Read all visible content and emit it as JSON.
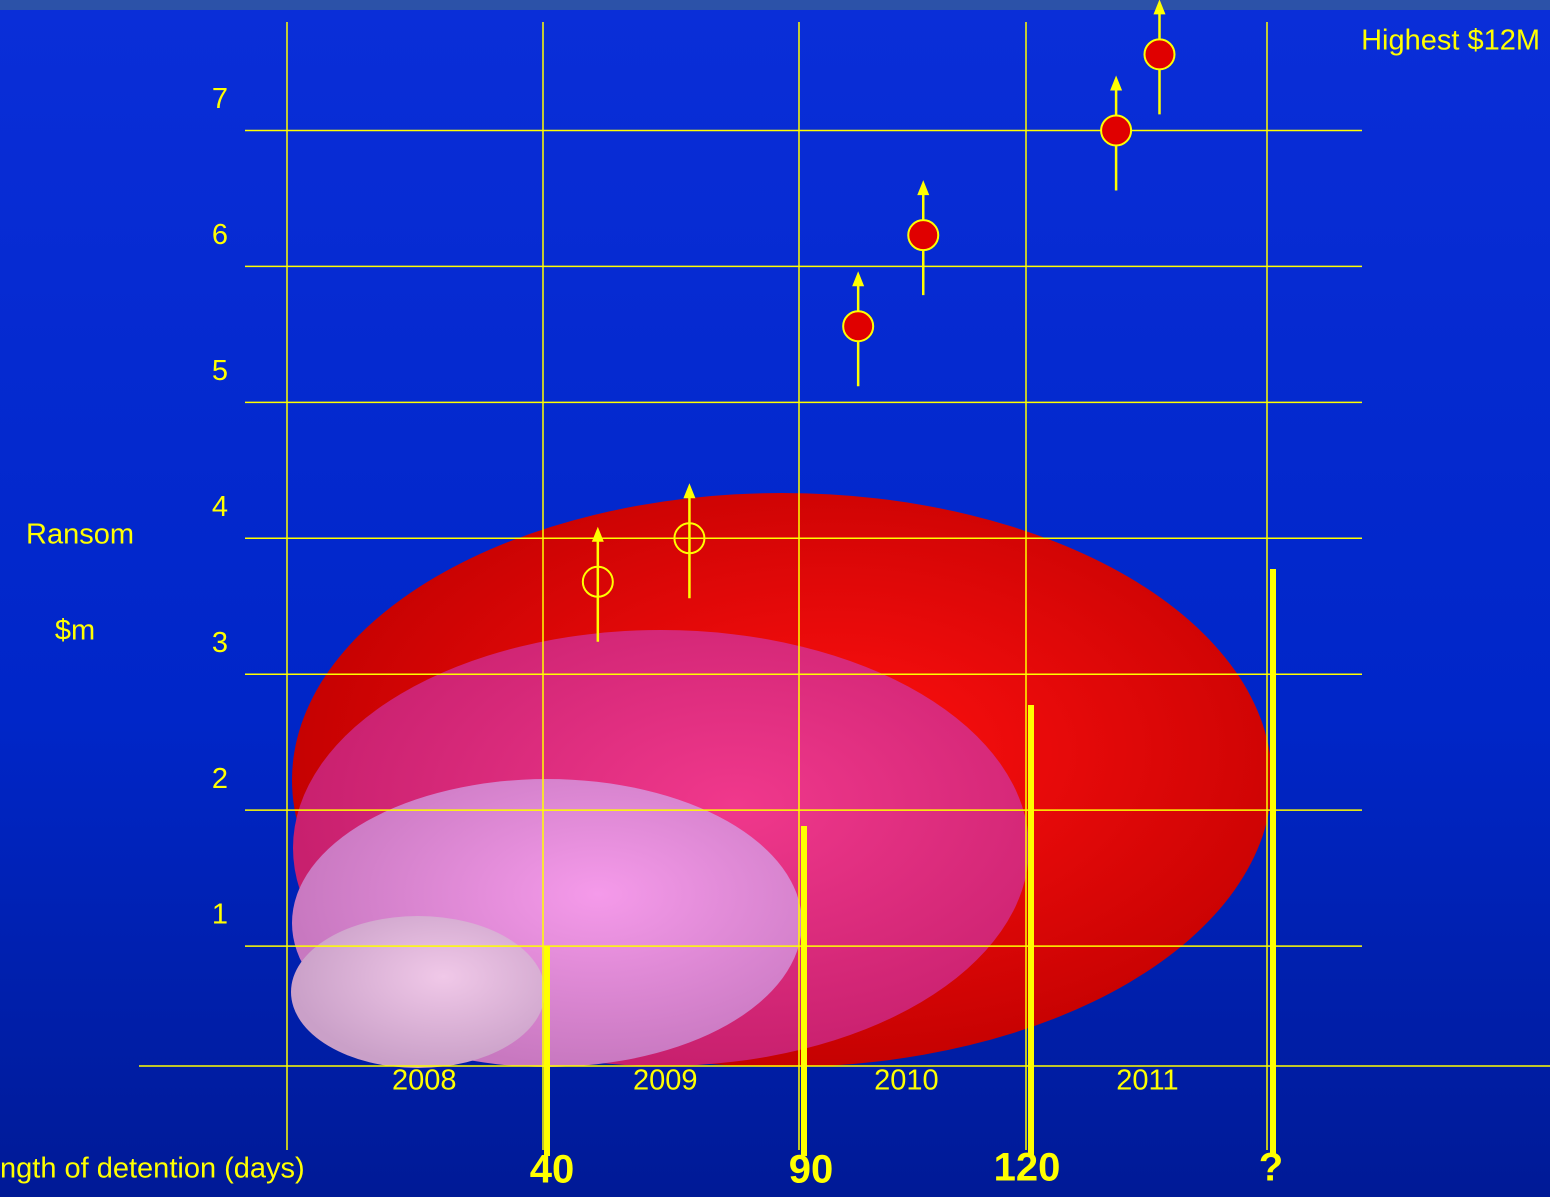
{
  "chart_data": {
    "type": "scatter",
    "annotation": "Highest $12M",
    "ylabel": "Ransom",
    "ylabel_unit": "$m",
    "xlabel": "ngth of detention (days)",
    "detention_labels": [
      40,
      90,
      120,
      "?"
    ],
    "x": [
      2008.72,
      2009.1,
      2009.8,
      2010.07,
      2010.87,
      2011.05
    ],
    "values": [
      3.68,
      4.0,
      5.56,
      6.23,
      7.0,
      7.56
    ],
    "filled": [
      false,
      false,
      true,
      true,
      true,
      true
    ],
    "color": "#e00000",
    "xlim": [
      2006.24,
      2012.67
    ],
    "xticks": [
      2008,
      2009,
      2010,
      2011
    ],
    "ylim": [
      0,
      7.96
    ],
    "yticks": [
      1,
      2,
      3,
      4,
      5,
      6,
      7
    ],
    "grid": true
  }
}
